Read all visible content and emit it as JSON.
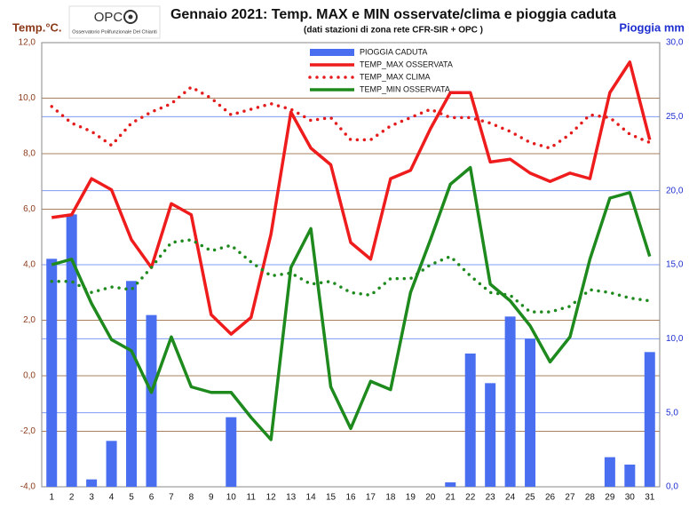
{
  "chart_data": {
    "type": "combo",
    "title": "Gennaio 2021: Temp. MAX e MIN osservate/clima e pioggia caduta",
    "subtitle": "(dati stazioni di zona rete CFR-SIR + OPC )",
    "ylabel": "Temp.°C.",
    "y2label": "Pioggia mm",
    "logo": {
      "name": "OPC",
      "caption": "Osservatorio Polifunzionale Del Chianti"
    },
    "categories": [
      "1",
      "2",
      "3",
      "4",
      "5",
      "6",
      "7",
      "8",
      "9",
      "10",
      "11",
      "12",
      "13",
      "14",
      "15",
      "16",
      "17",
      "18",
      "19",
      "20",
      "21",
      "22",
      "23",
      "24",
      "25",
      "26",
      "27",
      "28",
      "29",
      "30",
      "31"
    ],
    "ylim": [
      -4,
      12
    ],
    "yticks": [
      {
        "value": -4,
        "label": "-4,0"
      },
      {
        "value": -2,
        "label": "-2,0"
      },
      {
        "value": 0,
        "label": "0,0"
      },
      {
        "value": 2,
        "label": "2,0"
      },
      {
        "value": 4,
        "label": "4,0"
      },
      {
        "value": 6,
        "label": "6,0"
      },
      {
        "value": 8,
        "label": "8,0"
      },
      {
        "value": 10,
        "label": "10,0"
      },
      {
        "value": 12,
        "label": "12,0"
      }
    ],
    "y2lim": [
      0,
      30
    ],
    "y2ticks": [
      {
        "value": 0,
        "label": "0,0"
      },
      {
        "value": 5,
        "label": "5,0"
      },
      {
        "value": 10,
        "label": "10,0"
      },
      {
        "value": 15,
        "label": "15,0"
      },
      {
        "value": 20,
        "label": "20,0"
      },
      {
        "value": 25,
        "label": "25,0"
      },
      {
        "value": 30,
        "label": "30,0"
      }
    ],
    "grid": true,
    "y2grid": true,
    "series": [
      {
        "name": "PIOGGIA CADUTA",
        "type": "bar",
        "axis": "y2",
        "color": "#4a6ef0",
        "values": [
          15.4,
          18.4,
          0.5,
          3.1,
          13.9,
          11.6,
          0,
          0,
          0,
          4.7,
          0,
          0,
          0,
          0,
          0,
          0,
          0,
          0,
          0,
          0,
          0.3,
          9.0,
          7.0,
          11.5,
          10.0,
          0,
          0,
          0,
          2.0,
          1.5,
          9.1
        ]
      },
      {
        "name": "TEMP_MAX OSSERVATA",
        "type": "line",
        "dotted": false,
        "color": "#ee1c1c",
        "values": [
          5.7,
          5.8,
          7.1,
          6.7,
          4.9,
          3.9,
          6.2,
          5.8,
          2.2,
          1.5,
          2.1,
          5.1,
          9.5,
          8.2,
          7.6,
          4.8,
          4.2,
          7.1,
          7.4,
          8.9,
          10.2,
          10.2,
          7.7,
          7.8,
          7.3,
          7.0,
          7.3,
          7.1,
          10.2,
          11.3,
          8.5
        ]
      },
      {
        "name": "TEMP_MAX CLIMA",
        "type": "line",
        "dotted": true,
        "color": "#e41c1c",
        "values": [
          9.7,
          9.1,
          8.8,
          8.3,
          9.1,
          9.5,
          9.8,
          10.4,
          10.0,
          9.4,
          9.6,
          9.8,
          9.6,
          9.2,
          9.3,
          8.5,
          8.5,
          9.0,
          9.3,
          9.6,
          9.3,
          9.3,
          9.1,
          8.8,
          8.4,
          8.2,
          8.7,
          9.4,
          9.3,
          8.7,
          8.4
        ]
      },
      {
        "name": "TEMP_MIN OSSERVATA",
        "type": "line",
        "dotted": false,
        "color": "#1e8a1e",
        "values": [
          4.0,
          4.2,
          2.6,
          1.3,
          0.9,
          -0.6,
          1.4,
          -0.4,
          -0.6,
          -0.6,
          -1.5,
          -2.3,
          3.9,
          5.3,
          -0.4,
          -1.9,
          -0.2,
          -0.5,
          3.0,
          4.9,
          6.9,
          7.5,
          3.3,
          2.7,
          1.8,
          0.5,
          1.4,
          4.2,
          6.4,
          6.6,
          4.3
        ]
      },
      {
        "type": "line",
        "dotted": true,
        "color": "#1e8a1e",
        "values": [
          3.4,
          3.4,
          3.0,
          3.2,
          3.1,
          3.9,
          4.8,
          4.9,
          4.5,
          4.7,
          4.1,
          3.6,
          3.7,
          3.3,
          3.4,
          3.0,
          2.9,
          3.5,
          3.5,
          4.0,
          4.3,
          3.6,
          3.0,
          2.9,
          2.3,
          2.3,
          2.5,
          3.1,
          3.0,
          2.8,
          2.7
        ]
      }
    ]
  }
}
